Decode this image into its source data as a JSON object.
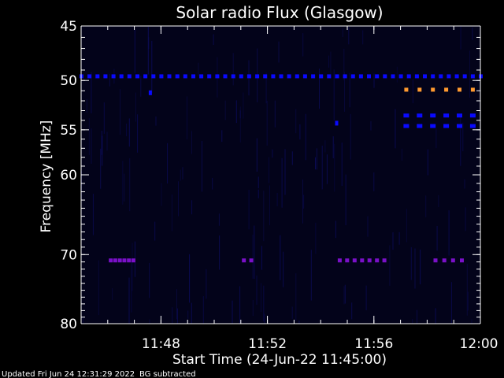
{
  "chart_data": {
    "type": "heatmap",
    "title": "Solar radio Flux (Glasgow)",
    "ylabel": "Frequency [MHz]",
    "xlabel": "Start Time (24-Jun-22 11:45:00)",
    "footer": {
      "updated": "Updated Fri Jun 24 12:31:29 2022",
      "note": "BG subtracted"
    },
    "x_range_minutes": [
      0,
      15
    ],
    "y_range_mhz": [
      45,
      80
    ],
    "y_scale": "log",
    "x_ticks": [
      {
        "label": "11:48",
        "minutes": 3
      },
      {
        "label": "11:52",
        "minutes": 7
      },
      {
        "label": "11:56",
        "minutes": 11
      },
      {
        "label": "12:00",
        "minutes": 15
      }
    ],
    "y_ticks": [
      {
        "label": "45",
        "mhz": 45
      },
      {
        "label": "50",
        "mhz": 50
      },
      {
        "label": "55",
        "mhz": 55
      },
      {
        "label": "60",
        "mhz": 60
      },
      {
        "label": "70",
        "mhz": 70
      },
      {
        "label": "80",
        "mhz": 80
      }
    ],
    "colors": {
      "background": "#000000",
      "plot_bg": "#03031a",
      "axis": "#ffffff",
      "low": "#0a0aff",
      "mid": "#7a10c8",
      "high": "#ff9a30"
    },
    "features": [
      {
        "name": "dashed-49.6",
        "mhz": 49.6,
        "start": 0.0,
        "end": 15.0,
        "dash_every": 0.3,
        "color": "#0a0aff"
      },
      {
        "name": "dashed-50.9",
        "mhz": 50.9,
        "start": 12.2,
        "end": 14.9,
        "dash_every": 0.5,
        "color": "#ff9a30"
      },
      {
        "name": "dashed-53.5",
        "mhz": 53.5,
        "start": 12.2,
        "end": 14.9,
        "dash_every": 0.5,
        "color": "#0a0aff"
      },
      {
        "name": "dashed-54.6",
        "mhz": 54.6,
        "start": 12.2,
        "end": 14.9,
        "dash_every": 0.5,
        "color": "#0a0aff"
      },
      {
        "name": "purple-70.8-a",
        "mhz": 70.8,
        "start": 1.1,
        "end": 2.1,
        "dash_every": 0.17,
        "color": "#7a10c8"
      },
      {
        "name": "purple-70.8-b",
        "mhz": 70.8,
        "start": 6.1,
        "end": 6.5,
        "dash_every": 0.28,
        "color": "#7a10c8"
      },
      {
        "name": "purple-70.8-c",
        "mhz": 70.8,
        "start": 9.7,
        "end": 11.6,
        "dash_every": 0.28,
        "color": "#7a10c8"
      },
      {
        "name": "purple-70.8-d",
        "mhz": 70.8,
        "start": 13.3,
        "end": 14.6,
        "dash_every": 0.33,
        "color": "#7a10c8"
      }
    ],
    "spots": [
      {
        "mhz": 51.2,
        "minutes": 2.6,
        "color": "#0a0aff"
      },
      {
        "mhz": 54.3,
        "minutes": 9.6,
        "color": "#0a0aff"
      }
    ]
  }
}
